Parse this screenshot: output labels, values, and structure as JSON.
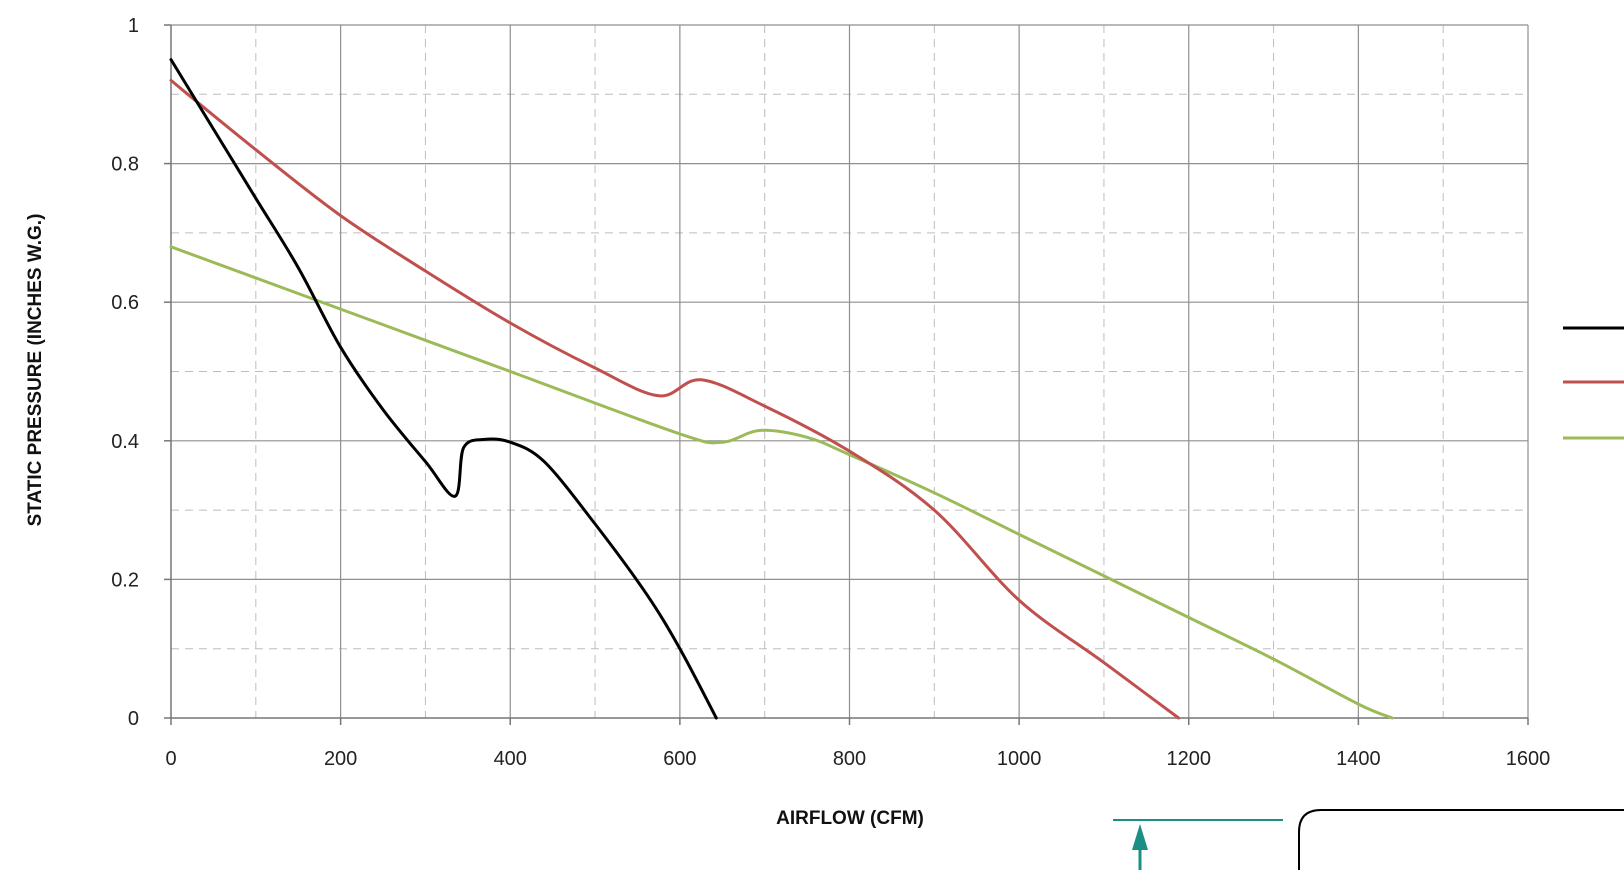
{
  "chart_data": {
    "type": "line",
    "title": "",
    "xlabel": "AIRFLOW (CFM)",
    "ylabel": "STATIC PRESSURE (INCHES W.G.)",
    "xlim": [
      0,
      1600
    ],
    "ylim": [
      0,
      1
    ],
    "x_major_ticks": [
      0,
      200,
      400,
      600,
      800,
      1000,
      1200,
      1400,
      1600
    ],
    "x_tick_labels": [
      "0",
      "200",
      "400",
      "600",
      "800",
      "1000",
      "1200",
      "1400",
      "1600"
    ],
    "x_minor_ticks": [
      100,
      300,
      500,
      700,
      900,
      1100,
      1300,
      1500
    ],
    "y_major_ticks": [
      0,
      0.2,
      0.4,
      0.6,
      0.8,
      1
    ],
    "y_tick_labels": [
      "0",
      "0.2",
      "0.4",
      "0.6",
      "0.8",
      "1"
    ],
    "y_minor_ticks": [
      0.1,
      0.3,
      0.5,
      0.7,
      0.9
    ],
    "grid": true,
    "legend_position": "right (cut off at image edge, labels not visible)",
    "series": [
      {
        "color": "#000000",
        "points": [
          [
            0,
            0.95
          ],
          [
            50,
            0.85
          ],
          [
            100,
            0.75
          ],
          [
            150,
            0.65
          ],
          [
            200,
            0.535
          ],
          [
            250,
            0.445
          ],
          [
            300,
            0.37
          ],
          [
            335,
            0.32
          ],
          [
            345,
            0.39
          ],
          [
            370,
            0.402
          ],
          [
            400,
            0.398
          ],
          [
            440,
            0.37
          ],
          [
            500,
            0.28
          ],
          [
            560,
            0.18
          ],
          [
            600,
            0.1
          ],
          [
            643,
            0.0
          ]
        ]
      },
      {
        "color": "#c0504d",
        "points": [
          [
            0,
            0.92
          ],
          [
            100,
            0.82
          ],
          [
            200,
            0.725
          ],
          [
            300,
            0.645
          ],
          [
            400,
            0.57
          ],
          [
            500,
            0.505
          ],
          [
            575,
            0.465
          ],
          [
            625,
            0.488
          ],
          [
            700,
            0.45
          ],
          [
            800,
            0.385
          ],
          [
            900,
            0.3
          ],
          [
            1000,
            0.17
          ],
          [
            1100,
            0.08
          ],
          [
            1188,
            0.0
          ]
        ]
      },
      {
        "color": "#9bbb59",
        "points": [
          [
            0,
            0.68
          ],
          [
            200,
            0.59
          ],
          [
            400,
            0.5
          ],
          [
            600,
            0.41
          ],
          [
            650,
            0.398
          ],
          [
            695,
            0.415
          ],
          [
            750,
            0.405
          ],
          [
            800,
            0.38
          ],
          [
            900,
            0.325
          ],
          [
            1000,
            0.265
          ],
          [
            1100,
            0.205
          ],
          [
            1200,
            0.145
          ],
          [
            1300,
            0.085
          ],
          [
            1400,
            0.02
          ],
          [
            1440,
            0.0
          ]
        ]
      }
    ]
  },
  "legend_swatch_colors": [
    "#000000",
    "#c0504d",
    "#9bbb59"
  ],
  "annotation_colors": {
    "arrow": "#1b8f86",
    "box_border": "#000000"
  }
}
